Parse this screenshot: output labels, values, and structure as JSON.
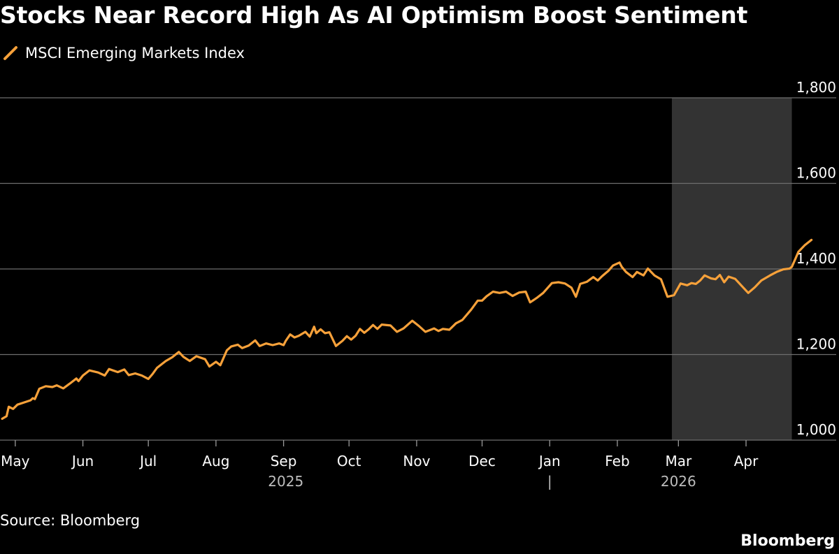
{
  "title": "Stocks Near Record High As AI Optimism Boost Sentiment",
  "source": "Source: Bloomberg",
  "brand": "Bloomberg",
  "colors": {
    "background": "#000000",
    "line": "#F7A13A",
    "grid": "#6E6E6E",
    "shade": "#333333",
    "text": "#FFFFFF"
  },
  "chart_data": {
    "type": "line",
    "title": "Stocks Near Record High As AI Optimism Boost Sentiment",
    "xlabel": "",
    "ylabel": "",
    "ylim": [
      1000,
      1800
    ],
    "y_ticks": [
      1000,
      1200,
      1400,
      1600,
      1800
    ],
    "y_tick_labels": [
      "1,000",
      "1,200",
      "1,400",
      "1,600",
      "1,800"
    ],
    "x_range": [
      "2025-04-24",
      "2026-05-04"
    ],
    "x_ticks": [
      {
        "label": "May",
        "date": "2025-05-01"
      },
      {
        "label": "Jun",
        "date": "2025-06-01"
      },
      {
        "label": "Jul",
        "date": "2025-07-01"
      },
      {
        "label": "Aug",
        "date": "2025-08-01"
      },
      {
        "label": "Sep",
        "date": "2025-09-01"
      },
      {
        "label": "Oct",
        "date": "2025-10-01"
      },
      {
        "label": "Nov",
        "date": "2025-11-01"
      },
      {
        "label": "Dec",
        "date": "2025-12-01"
      },
      {
        "label": "Jan",
        "date": "2026-01-01"
      },
      {
        "label": "Feb",
        "date": "2026-02-01"
      },
      {
        "label": "Mar",
        "date": "2026-03-01"
      },
      {
        "label": "Apr",
        "date": "2026-04-01"
      }
    ],
    "year_labels": [
      {
        "label": "2025",
        "date": "2025-09-02"
      },
      {
        "label": "2026",
        "date": "2026-03-01"
      }
    ],
    "year_separator": "|",
    "year_separator_date": "2026-01-01",
    "shaded_region": [
      "2026-02-26",
      "2026-04-22"
    ],
    "grid": true,
    "legend": "top-left",
    "series": [
      {
        "name": "MSCI Emerging Markets Index",
        "points": [
          [
            "2025-04-25",
            1050
          ],
          [
            "2025-04-27",
            1056
          ],
          [
            "2025-04-28",
            1078
          ],
          [
            "2025-04-30",
            1073
          ],
          [
            "2025-05-02",
            1083
          ],
          [
            "2025-05-05",
            1088
          ],
          [
            "2025-05-08",
            1093
          ],
          [
            "2025-05-09",
            1098
          ],
          [
            "2025-05-10",
            1096
          ],
          [
            "2025-05-12",
            1120
          ],
          [
            "2025-05-15",
            1126
          ],
          [
            "2025-05-18",
            1124
          ],
          [
            "2025-05-20",
            1128
          ],
          [
            "2025-05-23",
            1121
          ],
          [
            "2025-05-26",
            1132
          ],
          [
            "2025-05-29",
            1144
          ],
          [
            "2025-05-30",
            1138
          ],
          [
            "2025-06-01",
            1151
          ],
          [
            "2025-06-04",
            1163
          ],
          [
            "2025-06-08",
            1158
          ],
          [
            "2025-06-11",
            1151
          ],
          [
            "2025-06-13",
            1166
          ],
          [
            "2025-06-17",
            1159
          ],
          [
            "2025-06-20",
            1165
          ],
          [
            "2025-06-22",
            1152
          ],
          [
            "2025-06-25",
            1156
          ],
          [
            "2025-06-28",
            1151
          ],
          [
            "2025-07-01",
            1143
          ],
          [
            "2025-07-03",
            1155
          ],
          [
            "2025-07-05",
            1169
          ],
          [
            "2025-07-09",
            1185
          ],
          [
            "2025-07-12",
            1194
          ],
          [
            "2025-07-15",
            1206
          ],
          [
            "2025-07-17",
            1195
          ],
          [
            "2025-07-20",
            1185
          ],
          [
            "2025-07-23",
            1196
          ],
          [
            "2025-07-27",
            1189
          ],
          [
            "2025-07-29",
            1172
          ],
          [
            "2025-08-01",
            1183
          ],
          [
            "2025-08-03",
            1175
          ],
          [
            "2025-08-06",
            1210
          ],
          [
            "2025-08-08",
            1219
          ],
          [
            "2025-08-11",
            1223
          ],
          [
            "2025-08-13",
            1215
          ],
          [
            "2025-08-16",
            1221
          ],
          [
            "2025-08-19",
            1233
          ],
          [
            "2025-08-21",
            1220
          ],
          [
            "2025-08-24",
            1226
          ],
          [
            "2025-08-27",
            1222
          ],
          [
            "2025-08-30",
            1226
          ],
          [
            "2025-09-01",
            1222
          ],
          [
            "2025-09-02",
            1232
          ],
          [
            "2025-09-04",
            1247
          ],
          [
            "2025-09-06",
            1240
          ],
          [
            "2025-09-08",
            1244
          ],
          [
            "2025-09-11",
            1253
          ],
          [
            "2025-09-13",
            1242
          ],
          [
            "2025-09-15",
            1265
          ],
          [
            "2025-09-16",
            1250
          ],
          [
            "2025-09-18",
            1259
          ],
          [
            "2025-09-20",
            1250
          ],
          [
            "2025-09-22",
            1252
          ],
          [
            "2025-09-25",
            1220
          ],
          [
            "2025-09-28",
            1232
          ],
          [
            "2025-09-30",
            1243
          ],
          [
            "2025-10-02",
            1235
          ],
          [
            "2025-10-04",
            1244
          ],
          [
            "2025-10-06",
            1260
          ],
          [
            "2025-10-08",
            1251
          ],
          [
            "2025-10-10",
            1259
          ],
          [
            "2025-10-12",
            1269
          ],
          [
            "2025-10-14",
            1260
          ],
          [
            "2025-10-16",
            1270
          ],
          [
            "2025-10-20",
            1268
          ],
          [
            "2025-10-23",
            1253
          ],
          [
            "2025-10-26",
            1261
          ],
          [
            "2025-10-30",
            1279
          ],
          [
            "2025-11-02",
            1267
          ],
          [
            "2025-11-05",
            1253
          ],
          [
            "2025-11-09",
            1261
          ],
          [
            "2025-11-11",
            1255
          ],
          [
            "2025-11-13",
            1260
          ],
          [
            "2025-11-16",
            1258
          ],
          [
            "2025-11-19",
            1273
          ],
          [
            "2025-11-22",
            1281
          ],
          [
            "2025-11-26",
            1305
          ],
          [
            "2025-11-29",
            1326
          ],
          [
            "2025-12-01",
            1326
          ],
          [
            "2025-12-03",
            1336
          ],
          [
            "2025-12-06",
            1347
          ],
          [
            "2025-12-09",
            1344
          ],
          [
            "2025-12-12",
            1347
          ],
          [
            "2025-12-15",
            1337
          ],
          [
            "2025-12-18",
            1345
          ],
          [
            "2025-12-21",
            1347
          ],
          [
            "2025-12-23",
            1322
          ],
          [
            "2025-12-26",
            1332
          ],
          [
            "2025-12-29",
            1344
          ],
          [
            "2026-01-02",
            1367
          ],
          [
            "2026-01-05",
            1369
          ],
          [
            "2026-01-08",
            1366
          ],
          [
            "2026-01-11",
            1356
          ],
          [
            "2026-01-13",
            1335
          ],
          [
            "2026-01-15",
            1365
          ],
          [
            "2026-01-18",
            1370
          ],
          [
            "2026-01-21",
            1381
          ],
          [
            "2026-01-23",
            1373
          ],
          [
            "2026-01-25",
            1383
          ],
          [
            "2026-01-28",
            1396
          ],
          [
            "2026-01-30",
            1408
          ],
          [
            "2026-02-02",
            1415
          ],
          [
            "2026-02-03",
            1405
          ],
          [
            "2026-02-05",
            1393
          ],
          [
            "2026-02-08",
            1381
          ],
          [
            "2026-02-10",
            1393
          ],
          [
            "2026-02-13",
            1385
          ],
          [
            "2026-02-15",
            1401
          ],
          [
            "2026-02-18",
            1385
          ],
          [
            "2026-02-21",
            1376
          ],
          [
            "2026-02-24",
            1335
          ],
          [
            "2026-02-27",
            1339
          ],
          [
            "2026-03-02",
            1366
          ],
          [
            "2026-03-05",
            1362
          ],
          [
            "2026-03-07",
            1367
          ],
          [
            "2026-03-09",
            1365
          ],
          [
            "2026-03-11",
            1373
          ],
          [
            "2026-03-13",
            1385
          ],
          [
            "2026-03-16",
            1378
          ],
          [
            "2026-03-18",
            1376
          ],
          [
            "2026-03-20",
            1386
          ],
          [
            "2026-03-22",
            1369
          ],
          [
            "2026-03-24",
            1382
          ],
          [
            "2026-03-27",
            1377
          ],
          [
            "2026-03-31",
            1355
          ],
          [
            "2026-04-02",
            1344
          ],
          [
            "2026-04-05",
            1357
          ],
          [
            "2026-04-08",
            1373
          ],
          [
            "2026-04-12",
            1385
          ],
          [
            "2026-04-15",
            1393
          ],
          [
            "2026-04-18",
            1399
          ],
          [
            "2026-04-21",
            1401
          ],
          [
            "2026-04-22",
            1405
          ],
          [
            "2026-04-24",
            1428
          ],
          [
            "2026-04-25",
            1440
          ],
          [
            "2026-04-28",
            1456
          ],
          [
            "2026-05-01",
            1468
          ]
        ]
      }
    ]
  },
  "legend_label": "MSCI Emerging Markets Index"
}
